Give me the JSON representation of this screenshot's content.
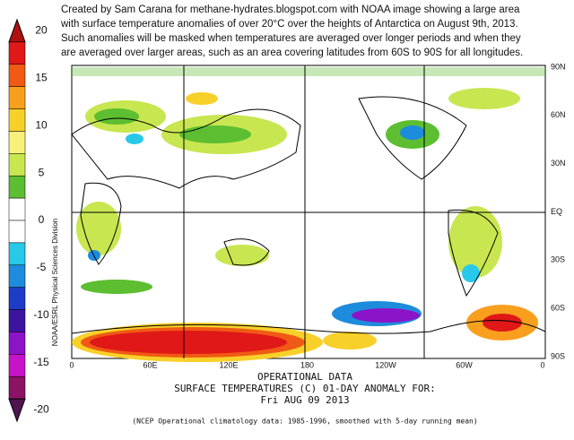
{
  "header": {
    "lines": [
      "Created by Sam Carana for methane-hydrates.blogspot.com with NOAA image showing a large area",
      "with surface temperature anomalies of over 20°C over the heights of Antarctica on August 9th, 2013.",
      "Such anomalies will be masked when temperatures are averaged over longer periods and when they",
      "are averaged over larger areas, such as an area covering latitudes from 60S to 90S for all longitudes."
    ]
  },
  "colorbar": {
    "ticks": [
      "20",
      "15",
      "10",
      "5",
      "0",
      "-5",
      "-10",
      "-15",
      "-20"
    ],
    "colors": [
      "#b01010",
      "#e01818",
      "#f05a14",
      "#f8a01e",
      "#f8d02a",
      "#f8f07a",
      "#c8e650",
      "#5cbe30",
      "#ffffff",
      "#ffffff",
      "#28c8e8",
      "#1e8cdc",
      "#1e3cc8",
      "#3c14a0",
      "#8c14c8",
      "#c814c8",
      "#8c1464",
      "#501450"
    ]
  },
  "side_label": "NOAA/ESRL Physical Sciences Division",
  "map": {
    "lat_labels": [
      "90N",
      "60N",
      "30N",
      "EQ",
      "30S",
      "60S",
      "90S"
    ],
    "lon_labels": [
      "0",
      "60E",
      "120E",
      "180",
      "120W",
      "60W",
      "0"
    ]
  },
  "footer": {
    "lines": [
      "OPERATIONAL DATA",
      "SURFACE TEMPERATURES (C)   01-DAY ANOMALY FOR:",
      "Fri AUG 09 2013"
    ],
    "note": "(NCEP Operational climatology data: 1985-1996, smoothed with 5-day running mean)"
  }
}
